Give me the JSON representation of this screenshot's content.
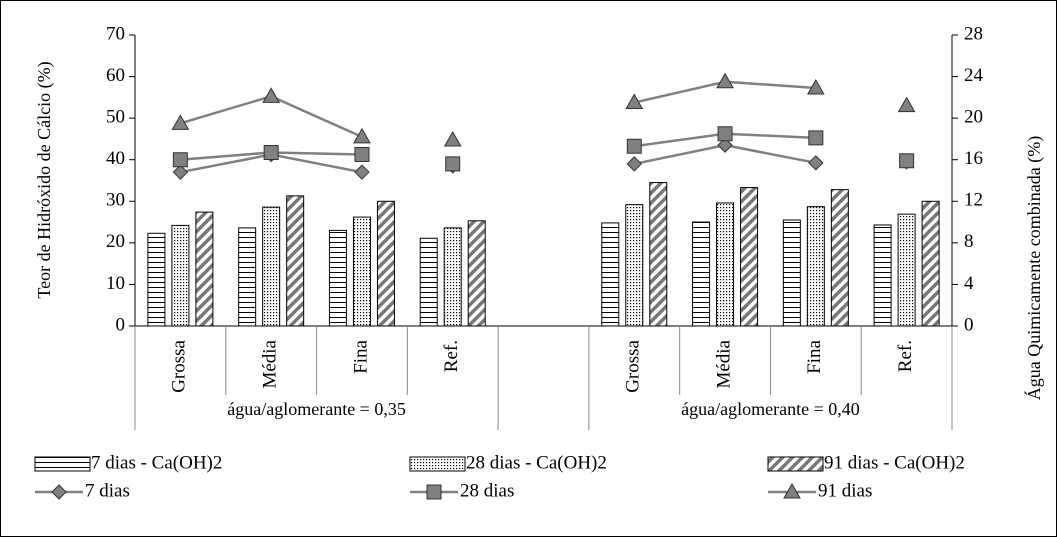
{
  "chart_data": {
    "type": "bar",
    "y_label": "Teor de Hidróxido de Cálcio (%)",
    "y2_label": "Água Quimicamente combinada  (%)",
    "categories": [
      "Grossa",
      "Média",
      "Fina",
      "Ref.",
      null,
      "Grossa",
      "Média",
      "Fina",
      "Ref."
    ],
    "groups": [
      {
        "label": "água/aglomerante = 0,35",
        "start": 0,
        "end": 3
      },
      {
        "label": "água/aglomerante = 0,40",
        "start": 5,
        "end": 8
      }
    ],
    "line_breaks": [
      3,
      8
    ],
    "ylim": [
      0,
      70
    ],
    "yticks": [
      0,
      10,
      20,
      30,
      40,
      50,
      60,
      70
    ],
    "y2lim": [
      0,
      28
    ],
    "y2ticks": [
      0,
      4,
      8,
      12,
      16,
      20,
      24,
      28
    ],
    "series": [
      {
        "name": "7 dias - Ca(OH)2",
        "type": "bar",
        "pattern": "horizontal",
        "color": "#000000",
        "values": [
          22.3,
          23.6,
          23.0,
          21.1,
          null,
          24.8,
          25.0,
          25.5,
          24.3
        ]
      },
      {
        "name": "28 dias - Ca(OH)2",
        "type": "bar",
        "pattern": "dots",
        "color": "#000000",
        "values": [
          24.2,
          28.6,
          26.2,
          23.6,
          null,
          29.2,
          29.6,
          28.7,
          26.9
        ]
      },
      {
        "name": "91 dias - Ca(OH)2",
        "type": "bar",
        "pattern": "diagonal",
        "color": "#000000",
        "values": [
          27.4,
          31.3,
          30.0,
          25.3,
          null,
          34.5,
          33.3,
          32.8,
          30.0
        ]
      },
      {
        "name": "7 dias",
        "type": "line",
        "axis": "y2",
        "marker": "diamond",
        "color": "#808080",
        "values": [
          14.8,
          16.5,
          14.8,
          15.4,
          null,
          15.6,
          17.4,
          15.7,
          15.8
        ]
      },
      {
        "name": "28 dias",
        "type": "line",
        "axis": "y2",
        "marker": "square",
        "color": "#808080",
        "values": [
          16.0,
          16.7,
          16.5,
          15.6,
          null,
          17.3,
          18.5,
          18.1,
          15.9
        ]
      },
      {
        "name": "91 dias",
        "type": "line",
        "axis": "y2",
        "marker": "triangle",
        "color": "#808080",
        "values": [
          19.5,
          22.1,
          18.2,
          17.9,
          null,
          21.5,
          23.5,
          22.9,
          21.2
        ]
      }
    ]
  }
}
